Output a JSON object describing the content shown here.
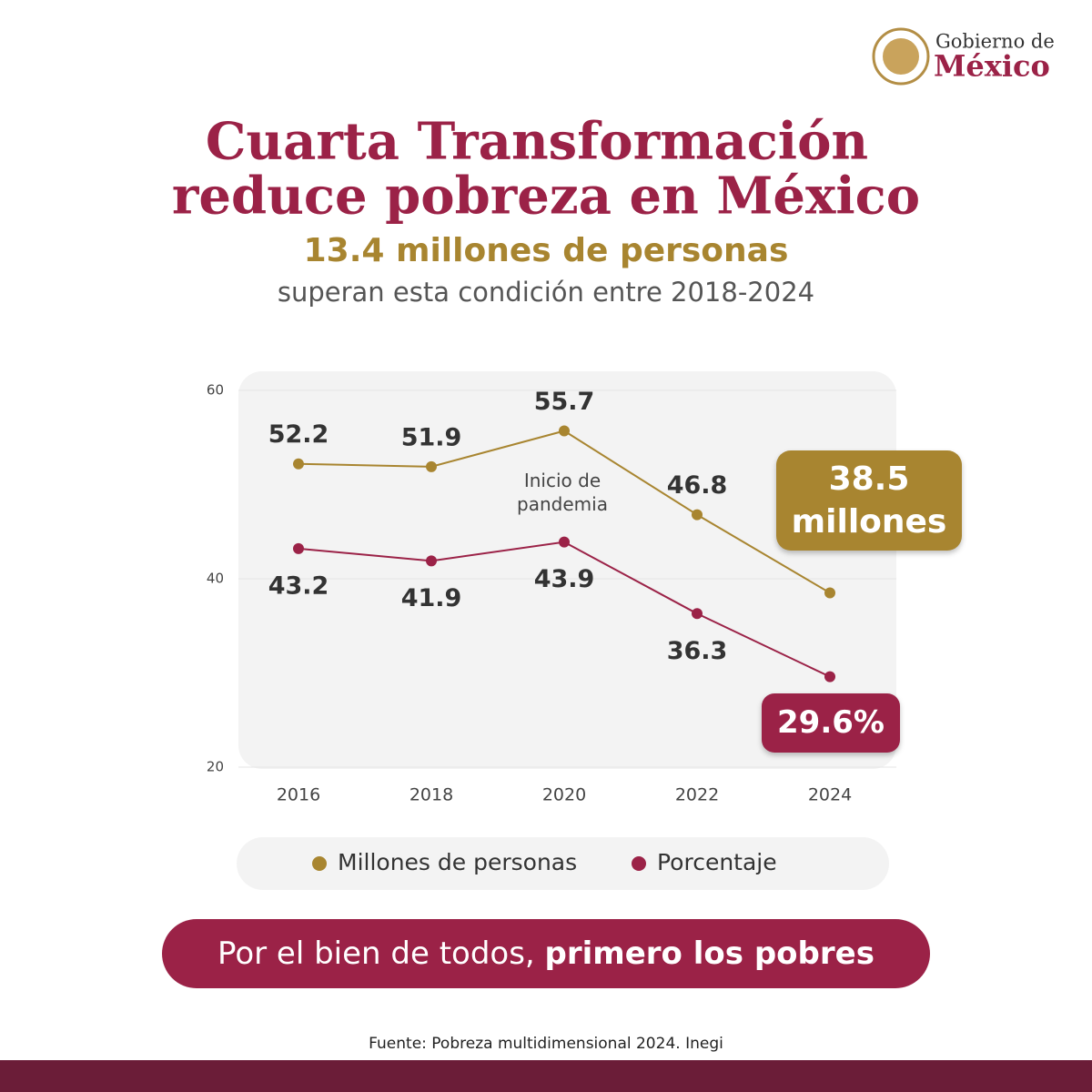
{
  "logo": {
    "small": "Gobierno de",
    "large": "México"
  },
  "chart_data": {
    "type": "line",
    "title": [
      "Cuarta Transformación",
      "reduce pobreza en México"
    ],
    "subtitle": [
      "13.4 millones de personas",
      "superan esta condición entre 2018-2024"
    ],
    "categories": [
      "2016",
      "2018",
      "2020",
      "2022",
      "2024"
    ],
    "series": [
      {
        "name": "Millones de personas",
        "color": "#a88530",
        "values": [
          52.2,
          51.9,
          55.7,
          46.8,
          38.5
        ],
        "value_labels": [
          "52.2",
          "51.9",
          "55.7",
          "46.8",
          "38.5 millones"
        ]
      },
      {
        "name": "Porcentaje",
        "color": "#9b2247",
        "values": [
          43.2,
          41.9,
          43.9,
          36.3,
          29.6
        ],
        "value_labels": [
          "43.2",
          "41.9",
          "43.9",
          "36.3",
          "29.6%"
        ]
      }
    ],
    "annotations": [
      "Inicio de pandemia"
    ],
    "ylim": [
      20,
      60
    ],
    "yticks": [
      20,
      40,
      60
    ],
    "grid": true
  },
  "slogan": {
    "text": "Por el bien de todos,",
    "bold": "primero los pobres"
  },
  "source": "Fuente: Pobreza multidimensional 2024. Inegi"
}
